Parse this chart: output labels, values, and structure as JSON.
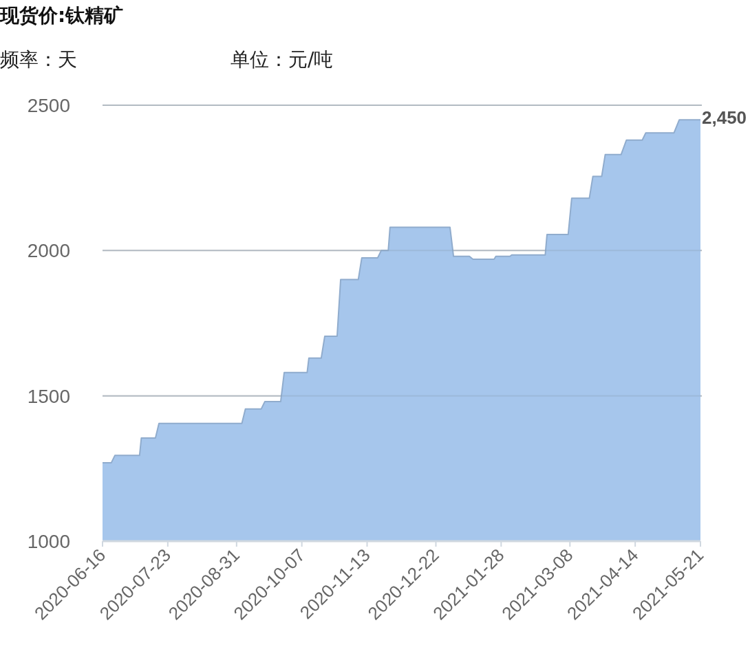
{
  "chart_data": {
    "type": "area",
    "title": "现货价:钛精矿",
    "annotations": [
      "频率：天",
      "单位：元/吨"
    ],
    "x": [
      "2020-06-16",
      "2020-06-21",
      "2020-06-23",
      "2020-07-07",
      "2020-07-08",
      "2020-07-16",
      "2020-07-18",
      "2020-09-03",
      "2020-09-05",
      "2020-09-14",
      "2020-09-16",
      "2020-09-25",
      "2020-09-27",
      "2020-10-10",
      "2020-10-11",
      "2020-10-18",
      "2020-10-20",
      "2020-10-27",
      "2020-10-29",
      "2020-11-08",
      "2020-11-10",
      "2020-11-19",
      "2020-11-21",
      "2020-11-25",
      "2020-11-26",
      "2020-12-30",
      "2021-01-01",
      "2021-01-10",
      "2021-01-12",
      "2021-01-24",
      "2021-01-25",
      "2021-02-02",
      "2021-02-03",
      "2021-02-22",
      "2021-02-23",
      "2021-03-07",
      "2021-03-09",
      "2021-03-19",
      "2021-03-21",
      "2021-03-26",
      "2021-03-28",
      "2021-04-06",
      "2021-04-09",
      "2021-04-18",
      "2021-04-20",
      "2021-05-06",
      "2021-05-09",
      "2021-05-21"
    ],
    "series": [
      {
        "color": "#a6c6ec",
        "values": [
          1270,
          1270,
          1295,
          1295,
          1355,
          1355,
          1405,
          1405,
          1455,
          1455,
          1480,
          1480,
          1580,
          1580,
          1630,
          1630,
          1705,
          1705,
          1900,
          1900,
          1975,
          1975,
          2000,
          2000,
          2080,
          2080,
          1980,
          1980,
          1970,
          1970,
          1980,
          1980,
          1985,
          1985,
          2055,
          2055,
          2180,
          2180,
          2255,
          2255,
          2330,
          2330,
          2380,
          2380,
          2405,
          2405,
          2450,
          2450
        ],
        "value_labels": [
          null,
          null,
          null,
          null,
          null,
          null,
          null,
          null,
          null,
          null,
          null,
          null,
          null,
          null,
          null,
          null,
          null,
          null,
          null,
          null,
          null,
          null,
          null,
          null,
          null,
          null,
          null,
          null,
          null,
          null,
          null,
          null,
          null,
          null,
          null,
          null,
          null,
          null,
          null,
          null,
          null,
          null,
          null,
          null,
          null,
          null,
          null,
          "2,450"
        ]
      }
    ],
    "xlim": [
      "2020-06-16",
      "2021-05-21"
    ],
    "xticks": [
      "2020-06-16",
      "2020-07-23",
      "2020-08-31",
      "2020-10-07",
      "2020-11-13",
      "2020-12-22",
      "2021-01-28",
      "2021-03-08",
      "2021-04-14",
      "2021-05-21"
    ],
    "ylim": [
      1000,
      2500
    ],
    "yticks": [
      1000,
      1500,
      2000,
      2500
    ],
    "grid": "y"
  }
}
